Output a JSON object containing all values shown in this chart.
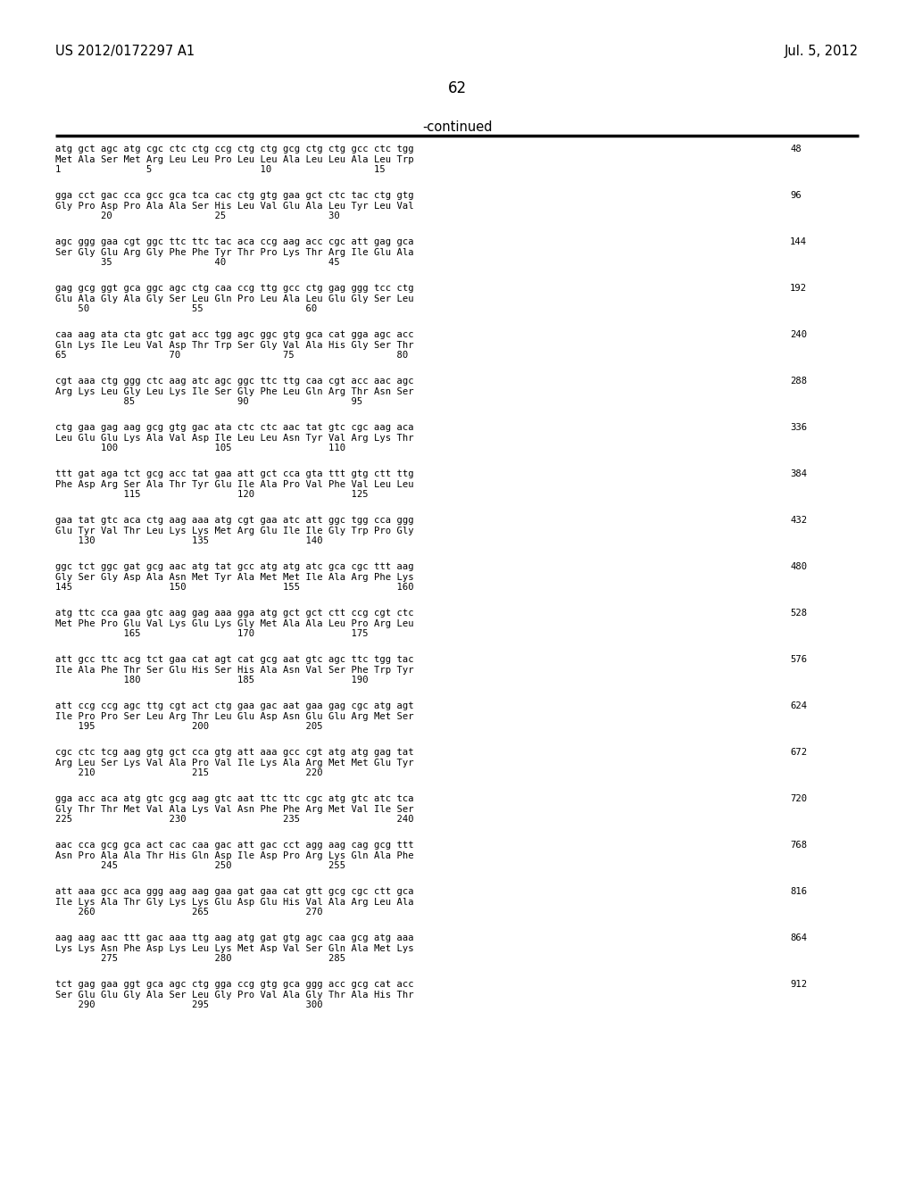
{
  "header_left": "US 2012/0172297 A1",
  "header_right": "Jul. 5, 2012",
  "page_number": "62",
  "continued_label": "-continued",
  "background_color": "#ffffff",
  "text_color": "#000000",
  "sequences": [
    {
      "dna": "atg gct agc atg cgc ctc ctg ccg ctg ctg gcg ctg ctg gcc ctc tgg",
      "aa": "Met Ala Ser Met Arg Leu Leu Pro Leu Leu Ala Leu Leu Ala Leu Trp",
      "nums": "1               5                   10                  15",
      "count": "48"
    },
    {
      "dna": "gga cct gac cca gcc gca tca cac ctg gtg gaa gct ctc tac ctg gtg",
      "aa": "Gly Pro Asp Pro Ala Ala Ser His Leu Val Glu Ala Leu Tyr Leu Val",
      "nums": "        20                  25                  30",
      "count": "96"
    },
    {
      "dna": "agc ggg gaa cgt ggc ttc ttc tac aca ccg aag acc cgc att gag gca",
      "aa": "Ser Gly Glu Arg Gly Phe Phe Tyr Thr Pro Lys Thr Arg Ile Glu Ala",
      "nums": "        35                  40                  45",
      "count": "144"
    },
    {
      "dna": "gag gcg ggt gca ggc agc ctg caa ccg ttg gcc ctg gag ggg tcc ctg",
      "aa": "Glu Ala Gly Ala Gly Ser Leu Gln Pro Leu Ala Leu Glu Gly Ser Leu",
      "nums": "    50                  55                  60",
      "count": "192"
    },
    {
      "dna": "caa aag ata cta gtc gat acc tgg agc ggc gtg gca cat gga agc acc",
      "aa": "Gln Lys Ile Leu Val Asp Thr Trp Ser Gly Val Ala His Gly Ser Thr",
      "nums": "65                  70                  75                  80",
      "count": "240"
    },
    {
      "dna": "cgt aaa ctg ggg ctc aag atc agc ggc ttc ttg caa cgt acc aac agc",
      "aa": "Arg Lys Leu Gly Leu Lys Ile Ser Gly Phe Leu Gln Arg Thr Asn Ser",
      "nums": "            85                  90                  95",
      "count": "288"
    },
    {
      "dna": "ctg gaa gag aag gcg gtg gac ata ctc ctc aac tat gtc cgc aag aca",
      "aa": "Leu Glu Glu Lys Ala Val Asp Ile Leu Leu Asn Tyr Val Arg Lys Thr",
      "nums": "        100                 105                 110",
      "count": "336"
    },
    {
      "dna": "ttt gat aga tct gcg acc tat gaa att gct cca gta ttt gtg ctt ttg",
      "aa": "Phe Asp Arg Ser Ala Thr Tyr Glu Ile Ala Pro Val Phe Val Leu Leu",
      "nums": "            115                 120                 125",
      "count": "384"
    },
    {
      "dna": "gaa tat gtc aca ctg aag aaa atg cgt gaa atc att ggc tgg cca ggg",
      "aa": "Glu Tyr Val Thr Leu Lys Lys Met Arg Glu Ile Ile Gly Trp Pro Gly",
      "nums": "    130                 135                 140",
      "count": "432"
    },
    {
      "dna": "ggc tct ggc gat gcg aac atg tat gcc atg atg atc gca cgc ttt aag",
      "aa": "Gly Ser Gly Asp Ala Asn Met Tyr Ala Met Met Ile Ala Arg Phe Lys",
      "nums": "145                 150                 155                 160",
      "count": "480"
    },
    {
      "dna": "atg ttc cca gaa gtc aag gag aaa gga atg gct gct ctt ccg cgt ctc",
      "aa": "Met Phe Pro Glu Val Lys Glu Lys Gly Met Ala Ala Leu Pro Arg Leu",
      "nums": "            165                 170                 175",
      "count": "528"
    },
    {
      "dna": "att gcc ttc acg tct gaa cat agt cat gcg aat gtc agc ttc tgg tac",
      "aa": "Ile Ala Phe Thr Ser Glu His Ser His Ala Asn Val Ser Phe Trp Tyr",
      "nums": "            180                 185                 190",
      "count": "576"
    },
    {
      "dna": "att ccg ccg agc ttg cgt act ctg gaa gac aat gaa gag cgc atg agt",
      "aa": "Ile Pro Pro Ser Leu Arg Thr Leu Glu Asp Asn Glu Glu Arg Met Ser",
      "nums": "    195                 200                 205",
      "count": "624"
    },
    {
      "dna": "cgc ctc tcg aag gtg gct cca gtg att aaa gcc cgt atg atg gag tat",
      "aa": "Arg Leu Ser Lys Val Ala Pro Val Ile Lys Ala Arg Met Met Glu Tyr",
      "nums": "    210                 215                 220",
      "count": "672"
    },
    {
      "dna": "gga acc aca atg gtc gcg aag gtc aat ttc ttc cgc atg gtc atc tca",
      "aa": "Gly Thr Thr Met Val Ala Lys Val Asn Phe Phe Arg Met Val Ile Ser",
      "nums": "225                 230                 235                 240",
      "count": "720"
    },
    {
      "dna": "aac cca gcg gca act cac caa gac att gac cct agg aag cag gcg ttt",
      "aa": "Asn Pro Ala Ala Thr His Gln Asp Ile Asp Pro Arg Lys Gln Ala Phe",
      "nums": "        245                 250                 255",
      "count": "768"
    },
    {
      "dna": "att aaa gcc aca ggg aag aag gaa gat gaa cat gtt gcg cgc ctt gca",
      "aa": "Ile Lys Ala Thr Gly Lys Lys Glu Asp Glu His Val Ala Arg Leu Ala",
      "nums": "    260                 265                 270",
      "count": "816"
    },
    {
      "dna": "aag aag aac ttt gac aaa ttg aag atg gat gtg agc caa gcg atg aaa",
      "aa": "Lys Lys Asn Phe Asp Lys Leu Lys Met Asp Val Ser Gln Ala Met Lys",
      "nums": "        275                 280                 285",
      "count": "864"
    },
    {
      "dna": "tct gag gaa ggt gca agc ctg gga ccg gtg gca ggg acc gcg cat acc",
      "aa": "Ser Glu Glu Gly Ala Ser Leu Gly Pro Val Ala Gly Thr Ala His Thr",
      "nums": "    290                 295                 300",
      "count": "912"
    }
  ]
}
